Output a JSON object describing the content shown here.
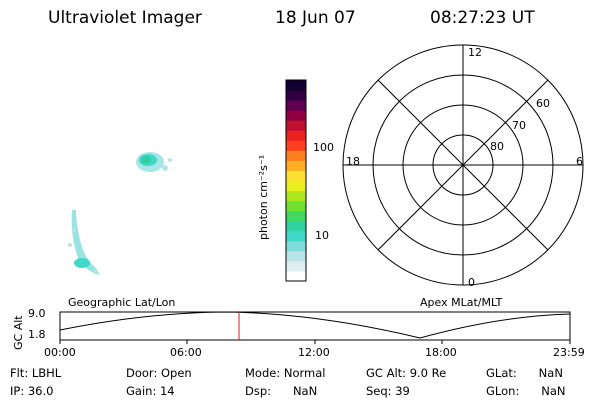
{
  "header": {
    "instrument": "Ultraviolet Imager",
    "date": "18 Jun 07",
    "time": "08:27:23 UT"
  },
  "colorbar": {
    "unit_label": "photon cm⁻²s⁻¹",
    "ticks": [
      "100",
      "10"
    ],
    "colors": [
      "#ffffff",
      "#e0eef0",
      "#b8e4e8",
      "#80dcdc",
      "#40d8c8",
      "#30d0a0",
      "#40d860",
      "#70e030",
      "#b0e820",
      "#e8f020",
      "#ffe030",
      "#ffb020",
      "#ff8020",
      "#ff4020",
      "#e82020",
      "#c01030",
      "#900040",
      "#600050",
      "#300040",
      "#100030"
    ]
  },
  "geo_panel": {
    "title": "Geographic Lat/Lon"
  },
  "polar_plot": {
    "title": "Apex MLat/MLT",
    "mlt_labels": {
      "top": "12",
      "left": "18",
      "right": "6",
      "bottom": "0"
    },
    "lat_labels": [
      "60",
      "70",
      "80"
    ]
  },
  "altitude_plot": {
    "ylabel": "GC Alt",
    "yticks": [
      "9.0",
      "1.8"
    ],
    "xticks": [
      "00:00",
      "06:00",
      "12:00",
      "18:00",
      "23:59"
    ]
  },
  "status": {
    "flt": "Flt: LBHL",
    "ip": "IP: 36.0",
    "door": "Door: Open",
    "gain": "Gain: 14",
    "mode": "Mode: Normal",
    "dsp": "Dsp:      NaN",
    "gc_alt": "GC Alt: 9.0 Re",
    "seq": "Seq: 39",
    "glat": "GLat:      NaN",
    "glon": "GLon:      NaN"
  }
}
